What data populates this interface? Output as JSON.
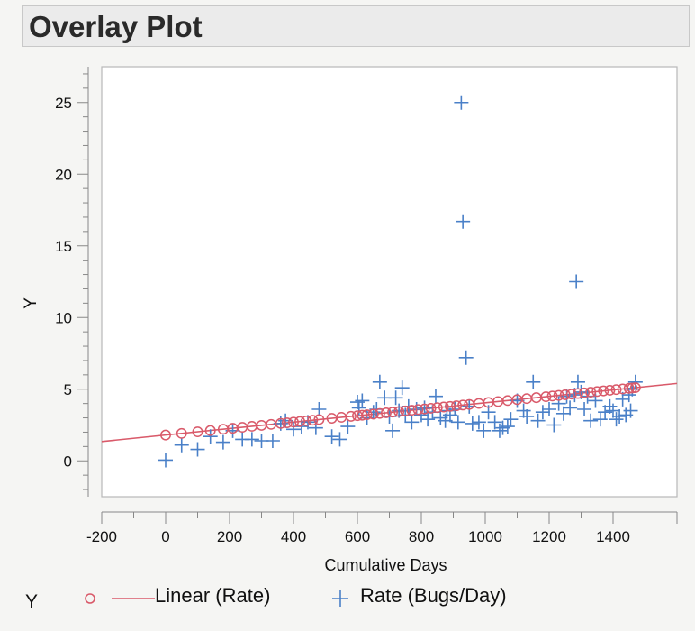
{
  "window": {
    "title": "Overlay Plot"
  },
  "chart_data": {
    "type": "scatter",
    "title": "",
    "xlabel": "Cumulative Days",
    "ylabel": "Y",
    "xlim": [
      -200,
      1600
    ],
    "ylim": [
      -2.5,
      27.5
    ],
    "x_ticks": [
      -200,
      0,
      200,
      400,
      600,
      800,
      1000,
      1200,
      1400
    ],
    "x_tick_labels": [
      "-200",
      "0",
      "200",
      "400",
      "600",
      "800",
      "1000",
      "1200",
      "1400"
    ],
    "y_ticks": [
      0,
      5,
      10,
      15,
      20,
      25
    ],
    "y_tick_labels": [
      "0",
      "5",
      "10",
      "15",
      "20",
      "25"
    ],
    "grid": false,
    "legend": {
      "placement": "bottom",
      "group_label": "Y"
    },
    "series": [
      {
        "name": "Linear (Rate)",
        "kind": "fit-line-with-circles",
        "color": "#d95a6a",
        "intercept": 1.8,
        "slope": 0.00225,
        "x": [
          0,
          50,
          100,
          140,
          180,
          210,
          240,
          270,
          300,
          330,
          360,
          380,
          400,
          420,
          440,
          460,
          480,
          520,
          550,
          580,
          600,
          615,
          630,
          650,
          670,
          690,
          710,
          730,
          750,
          770,
          790,
          810,
          830,
          850,
          870,
          890,
          910,
          930,
          950,
          980,
          1010,
          1040,
          1070,
          1100,
          1130,
          1160,
          1190,
          1210,
          1230,
          1250,
          1270,
          1290,
          1310,
          1330,
          1350,
          1370,
          1390,
          1410,
          1430,
          1450,
          1460,
          1470
        ]
      },
      {
        "name": "Rate (Bugs/Day)",
        "kind": "plus",
        "color": "#4a80c8",
        "points": [
          [
            0,
            0.05
          ],
          [
            50,
            1.1
          ],
          [
            100,
            0.8
          ],
          [
            140,
            1.7
          ],
          [
            180,
            1.3
          ],
          [
            210,
            2.1
          ],
          [
            240,
            1.5
          ],
          [
            270,
            1.5
          ],
          [
            300,
            1.4
          ],
          [
            335,
            1.4
          ],
          [
            360,
            2.6
          ],
          [
            375,
            2.8
          ],
          [
            400,
            2.2
          ],
          [
            425,
            2.4
          ],
          [
            445,
            2.7
          ],
          [
            470,
            2.3
          ],
          [
            480,
            3.6
          ],
          [
            520,
            1.7
          ],
          [
            545,
            1.5
          ],
          [
            570,
            2.4
          ],
          [
            600,
            4.1
          ],
          [
            605,
            3.7
          ],
          [
            615,
            4.2
          ],
          [
            630,
            3.0
          ],
          [
            650,
            3.4
          ],
          [
            660,
            3.6
          ],
          [
            670,
            5.5
          ],
          [
            685,
            4.4
          ],
          [
            700,
            3.1
          ],
          [
            710,
            2.1
          ],
          [
            720,
            4.4
          ],
          [
            730,
            3.5
          ],
          [
            740,
            5.1
          ],
          [
            750,
            3.2
          ],
          [
            760,
            3.8
          ],
          [
            770,
            2.7
          ],
          [
            785,
            3.6
          ],
          [
            800,
            3.2
          ],
          [
            810,
            3.7
          ],
          [
            820,
            2.9
          ],
          [
            835,
            3.4
          ],
          [
            845,
            4.5
          ],
          [
            860,
            3.0
          ],
          [
            875,
            2.8
          ],
          [
            880,
            3.5
          ],
          [
            890,
            3.2
          ],
          [
            905,
            3.6
          ],
          [
            915,
            2.7
          ],
          [
            925,
            25.0
          ],
          [
            930,
            16.7
          ],
          [
            940,
            7.2
          ],
          [
            950,
            3.8
          ],
          [
            960,
            2.6
          ],
          [
            980,
            2.7
          ],
          [
            995,
            2.1
          ],
          [
            1010,
            3.4
          ],
          [
            1030,
            2.7
          ],
          [
            1045,
            2.1
          ],
          [
            1055,
            2.3
          ],
          [
            1070,
            2.4
          ],
          [
            1080,
            2.9
          ],
          [
            1100,
            4.2
          ],
          [
            1120,
            3.5
          ],
          [
            1130,
            3.1
          ],
          [
            1150,
            5.5
          ],
          [
            1165,
            2.8
          ],
          [
            1180,
            3.4
          ],
          [
            1200,
            3.6
          ],
          [
            1215,
            2.5
          ],
          [
            1230,
            4.0
          ],
          [
            1245,
            3.3
          ],
          [
            1255,
            4.5
          ],
          [
            1265,
            3.7
          ],
          [
            1280,
            4.6
          ],
          [
            1285,
            12.5
          ],
          [
            1290,
            5.5
          ],
          [
            1300,
            4.8
          ],
          [
            1310,
            3.6
          ],
          [
            1320,
            4.5
          ],
          [
            1330,
            2.8
          ],
          [
            1345,
            4.2
          ],
          [
            1360,
            2.9
          ],
          [
            1375,
            3.4
          ],
          [
            1390,
            3.8
          ],
          [
            1400,
            3.5
          ],
          [
            1410,
            2.9
          ],
          [
            1420,
            3.1
          ],
          [
            1430,
            4.3
          ],
          [
            1440,
            3.2
          ],
          [
            1450,
            4.6
          ],
          [
            1455,
            3.5
          ],
          [
            1460,
            5.0
          ],
          [
            1470,
            5.5
          ]
        ]
      }
    ]
  }
}
